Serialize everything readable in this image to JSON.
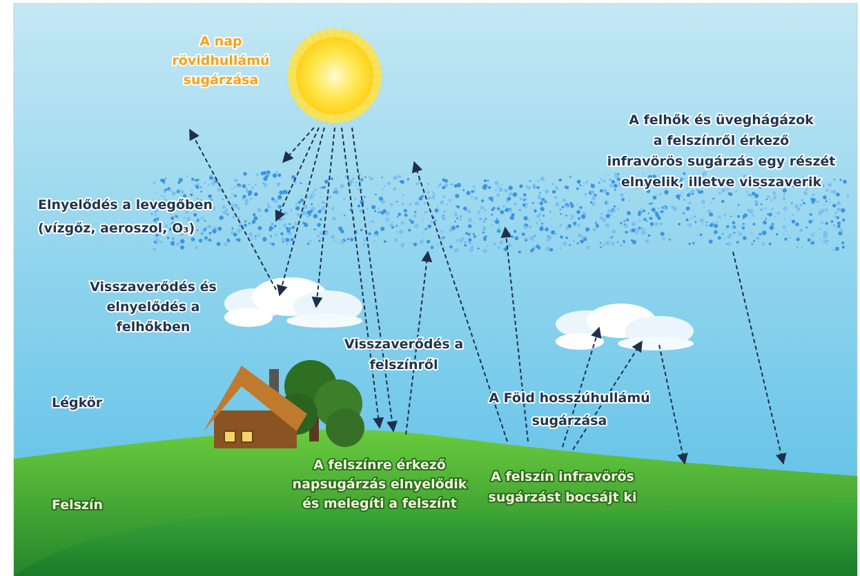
{
  "labels": [
    {
      "lines": [
        "A nap",
        "rövidhullámú",
        "sugárzása"
      ]
    },
    {
      "lines": [
        "A felhők és üveghágázok",
        "a felszínről érkező",
        "infravörös sugárzás egy részét",
        "elnyelik, illetve visszaverik"
      ]
    },
    {
      "lines": [
        "Elnyelődés a levegőben",
        "(vízgőz, aeroszol, O₃)"
      ]
    },
    {
      "lines": [
        "Visszaverődés és",
        "elnyelődés a",
        "felhőkben"
      ]
    },
    {
      "lines": [
        "Visszaverődés a",
        "felszínről"
      ]
    },
    {
      "lines": [
        "Légkör"
      ]
    },
    {
      "lines": [
        "A Föld hosszúhullámú",
        "sugárzása"
      ]
    },
    {
      "lines": [
        "A felszínre érkező",
        "napsugárzás elnyelődik",
        "és melegíti a felszínt"
      ]
    },
    {
      "lines": [
        "A felszín infravörös",
        "sugárzást bocsájt ki"
      ]
    },
    {
      "lines": [
        "Felszín"
      ]
    }
  ]
}
